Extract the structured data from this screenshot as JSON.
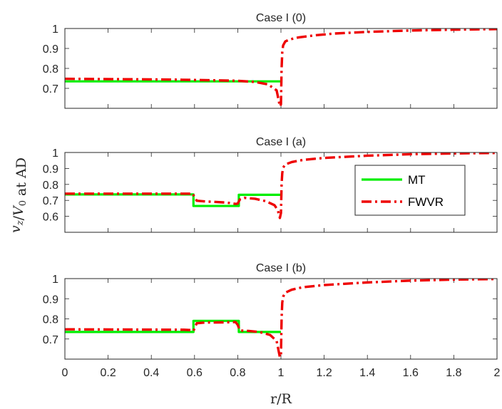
{
  "chart_data": {
    "type": "line",
    "ylabel": "v_z/V_0 at AD",
    "xlabel": "r/R",
    "xlim": [
      0,
      2
    ],
    "xticks": [
      "0",
      "0.2",
      "0.4",
      "0.6",
      "0.8",
      "1",
      "1.2",
      "1.4",
      "1.6",
      "1.8",
      "2"
    ],
    "colors": {
      "MT": "#00ee00",
      "FWVR": "#ee0000"
    },
    "legend": {
      "location": "right",
      "entries": [
        "MT",
        "FWVR"
      ]
    },
    "panels": [
      {
        "title": "Case I (0)",
        "ylim": [
          0.6,
          1.0
        ],
        "yticks": [
          "0.7",
          "0.8",
          "0.9",
          "1"
        ],
        "series": [
          {
            "name": "MT",
            "x": [
              0,
              1.0
            ],
            "y": [
              0.735,
              0.735
            ]
          },
          {
            "name": "FWVR",
            "x": [
              0,
              0.5,
              0.8,
              0.88,
              0.94,
              0.98,
              0.995,
              1.0,
              1.003,
              1.006,
              1.01,
              1.02,
              1.04,
              1.08,
              1.15,
              1.25,
              1.4,
              1.6,
              1.8,
              2.0
            ],
            "y": [
              0.748,
              0.744,
              0.738,
              0.732,
              0.72,
              0.69,
              0.61,
              0.62,
              0.8,
              0.88,
              0.915,
              0.935,
              0.945,
              0.955,
              0.965,
              0.975,
              0.983,
              0.99,
              0.994,
              0.997
            ]
          }
        ]
      },
      {
        "title": "Case I (a)",
        "ylim": [
          0.5,
          1.0
        ],
        "yticks": [
          "0.6",
          "0.7",
          "0.8",
          "0.9",
          "1"
        ],
        "series": [
          {
            "name": "MT",
            "x": [
              0,
              0.595,
              0.595,
              0.805,
              0.805,
              1.0
            ],
            "y": [
              0.737,
              0.737,
              0.665,
              0.665,
              0.735,
              0.735
            ]
          },
          {
            "name": "FWVR",
            "x": [
              0,
              0.58,
              0.59,
              0.6,
              0.61,
              0.65,
              0.7,
              0.75,
              0.79,
              0.8,
              0.81,
              0.83,
              0.88,
              0.93,
              0.97,
              0.985,
              0.995,
              1.0,
              1.003,
              1.006,
              1.01,
              1.02,
              1.05,
              1.1,
              1.2,
              1.4,
              1.6,
              1.8,
              2.0
            ],
            "y": [
              0.742,
              0.742,
              0.746,
              0.72,
              0.698,
              0.693,
              0.69,
              0.686,
              0.678,
              0.68,
              0.706,
              0.716,
              0.71,
              0.695,
              0.67,
              0.64,
              0.59,
              0.62,
              0.8,
              0.87,
              0.905,
              0.925,
              0.94,
              0.953,
              0.966,
              0.98,
              0.989,
              0.994,
              0.997
            ]
          }
        ]
      },
      {
        "title": "Case I (b)",
        "ylim": [
          0.6,
          1.0
        ],
        "yticks": [
          "0.7",
          "0.8",
          "0.9",
          "1"
        ],
        "series": [
          {
            "name": "MT",
            "x": [
              0,
              0.595,
              0.595,
              0.805,
              0.805,
              1.0
            ],
            "y": [
              0.735,
              0.735,
              0.79,
              0.79,
              0.735,
              0.735
            ]
          },
          {
            "name": "FWVR",
            "x": [
              0,
              0.55,
              0.585,
              0.595,
              0.61,
              0.65,
              0.7,
              0.75,
              0.79,
              0.8,
              0.81,
              0.85,
              0.9,
              0.95,
              0.98,
              0.995,
              1.0,
              1.003,
              1.006,
              1.01,
              1.02,
              1.05,
              1.1,
              1.2,
              1.4,
              1.6,
              1.8,
              2.0
            ],
            "y": [
              0.748,
              0.746,
              0.744,
              0.74,
              0.778,
              0.782,
              0.782,
              0.783,
              0.784,
              0.77,
              0.742,
              0.74,
              0.735,
              0.72,
              0.69,
              0.61,
              0.62,
              0.8,
              0.88,
              0.91,
              0.93,
              0.945,
              0.957,
              0.968,
              0.981,
              0.99,
              0.995,
              0.998
            ]
          }
        ]
      }
    ]
  }
}
